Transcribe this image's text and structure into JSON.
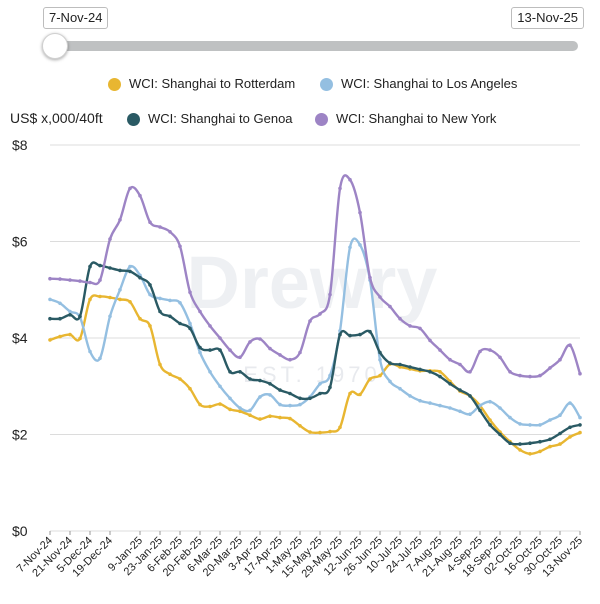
{
  "slider": {
    "start_label": "7-Nov-24",
    "end_label": "13-Nov-25"
  },
  "legend": [
    {
      "label": "WCI: Shanghai to Rotterdam",
      "color": "#e8b631"
    },
    {
      "label": "WCI: Shanghai to Los Angeles",
      "color": "#94bfe1"
    },
    {
      "label": "WCI: Shanghai to Genoa",
      "color": "#2a5a64"
    },
    {
      "label": "WCI: Shanghai to New York",
      "color": "#9d84c5"
    }
  ],
  "watermark": {
    "text": "Drewry",
    "sub": "EST. 1970"
  },
  "chart_data": {
    "type": "line",
    "title": "",
    "ylabel": "US$ x,000/40ft",
    "xlabel": "",
    "ylim": [
      0,
      8
    ],
    "yticks": [
      0,
      2,
      4,
      6,
      8
    ],
    "ytick_labels": [
      "$0",
      "$2",
      "$4",
      "$6",
      "$8"
    ],
    "grid": true,
    "legend_position": "top",
    "x": [
      "7-Nov-24",
      "14-Nov-24",
      "21-Nov-24",
      "28-Nov-24",
      "5-Dec-24",
      "12-Dec-24",
      "19-Dec-24",
      "26-Dec-24",
      "2-Jan-25",
      "9-Jan-25",
      "16-Jan-25",
      "23-Jan-25",
      "30-Jan-25",
      "6-Feb-25",
      "13-Feb-25",
      "20-Feb-25",
      "27-Feb-25",
      "6-Mar-25",
      "13-Mar-25",
      "20-Mar-25",
      "27-Mar-25",
      "3-Apr-25",
      "10-Apr-25",
      "17-Apr-25",
      "24-Apr-25",
      "1-May-25",
      "8-May-25",
      "15-May-25",
      "22-May-25",
      "29-May-25",
      "5-Jun-25",
      "12-Jun-25",
      "19-Jun-25",
      "26-Jun-25",
      "3-Jul-25",
      "10-Jul-25",
      "17-Jul-25",
      "24-Jul-25",
      "31-Jul-25",
      "7-Aug-25",
      "14-Aug-25",
      "21-Aug-25",
      "28-Aug-25",
      "4-Sep-25",
      "11-Sep-25",
      "18-Sep-25",
      "25-Sep-25",
      "02-Oct-25",
      "9-Oct-25",
      "16-Oct-25",
      "23-Oct-25",
      "30-Oct-25",
      "6-Nov-25",
      "13-Nov-25"
    ],
    "x_tick_labels": [
      "7-Nov-24",
      "21-Nov-24",
      "5-Dec-24",
      "19-Dec-24",
      "9-Jan-25",
      "23-Jan-25",
      "6-Feb-25",
      "20-Feb-25",
      "6-Mar-25",
      "20-Mar-25",
      "3-Apr-25",
      "17-Apr-25",
      "1-May-25",
      "15-May-25",
      "29-May-25",
      "12-Jun-25",
      "26-Jun-25",
      "10-Jul-25",
      "24-Jul-25",
      "7-Aug-25",
      "21-Aug-25",
      "4-Sep-25",
      "18-Sep-25",
      "02-Oct-25",
      "16-Oct-25",
      "30-Oct-25",
      "13-Nov-25"
    ],
    "series": [
      {
        "name": "WCI: Shanghai to Rotterdam",
        "color": "#e8b631",
        "values": [
          3.96,
          4.03,
          4.07,
          3.99,
          4.8,
          4.86,
          4.84,
          4.8,
          4.75,
          4.4,
          4.25,
          3.45,
          3.25,
          3.15,
          2.95,
          2.62,
          2.58,
          2.63,
          2.52,
          2.48,
          2.4,
          2.32,
          2.38,
          2.35,
          2.33,
          2.18,
          2.05,
          2.04,
          2.06,
          2.15,
          2.85,
          2.83,
          3.15,
          3.22,
          3.46,
          3.4,
          3.36,
          3.32,
          3.32,
          3.3,
          3.1,
          2.9,
          2.8,
          2.6,
          2.3,
          2.05,
          1.85,
          1.68,
          1.6,
          1.65,
          1.75,
          1.8,
          1.95,
          2.04
        ]
      },
      {
        "name": "WCI: Shanghai to Los Angeles",
        "color": "#94bfe1",
        "values": [
          4.8,
          4.72,
          4.55,
          4.43,
          3.72,
          3.58,
          4.45,
          5.0,
          5.48,
          5.3,
          4.9,
          4.82,
          4.78,
          4.73,
          4.3,
          3.7,
          3.3,
          3.0,
          2.75,
          2.55,
          2.5,
          2.78,
          2.82,
          2.62,
          2.6,
          2.62,
          2.78,
          3.05,
          3.22,
          4.15,
          5.88,
          5.93,
          5.2,
          3.55,
          3.1,
          2.95,
          2.8,
          2.7,
          2.65,
          2.6,
          2.55,
          2.48,
          2.42,
          2.6,
          2.68,
          2.55,
          2.35,
          2.22,
          2.2,
          2.2,
          2.3,
          2.4,
          2.65,
          2.35
        ]
      },
      {
        "name": "WCI: Shanghai to Genoa",
        "color": "#2a5a64",
        "values": [
          4.4,
          4.4,
          4.48,
          4.45,
          5.48,
          5.5,
          5.45,
          5.4,
          5.38,
          5.25,
          5.1,
          4.55,
          4.45,
          4.3,
          4.2,
          3.8,
          3.75,
          3.75,
          3.3,
          3.3,
          3.15,
          3.12,
          3.05,
          2.92,
          2.85,
          2.75,
          2.75,
          2.85,
          2.98,
          4.07,
          4.05,
          4.07,
          4.13,
          3.7,
          3.48,
          3.45,
          3.4,
          3.35,
          3.3,
          3.2,
          3.05,
          2.92,
          2.8,
          2.5,
          2.2,
          2.0,
          1.82,
          1.8,
          1.82,
          1.85,
          1.9,
          2.02,
          2.15,
          2.2
        ]
      },
      {
        "name": "WCI: Shanghai to New York",
        "color": "#9d84c5",
        "values": [
          5.23,
          5.22,
          5.2,
          5.18,
          5.15,
          5.2,
          6.05,
          6.45,
          7.1,
          6.95,
          6.4,
          6.3,
          6.2,
          5.9,
          4.95,
          4.55,
          4.25,
          4.0,
          3.75,
          3.6,
          3.92,
          3.98,
          3.78,
          3.65,
          3.55,
          3.7,
          4.35,
          4.5,
          4.9,
          7.1,
          7.28,
          6.6,
          5.25,
          4.85,
          4.65,
          4.4,
          4.25,
          4.2,
          3.95,
          3.75,
          3.55,
          3.45,
          3.3,
          3.72,
          3.75,
          3.6,
          3.3,
          3.22,
          3.2,
          3.22,
          3.38,
          3.55,
          3.85,
          3.26
        ]
      }
    ]
  }
}
